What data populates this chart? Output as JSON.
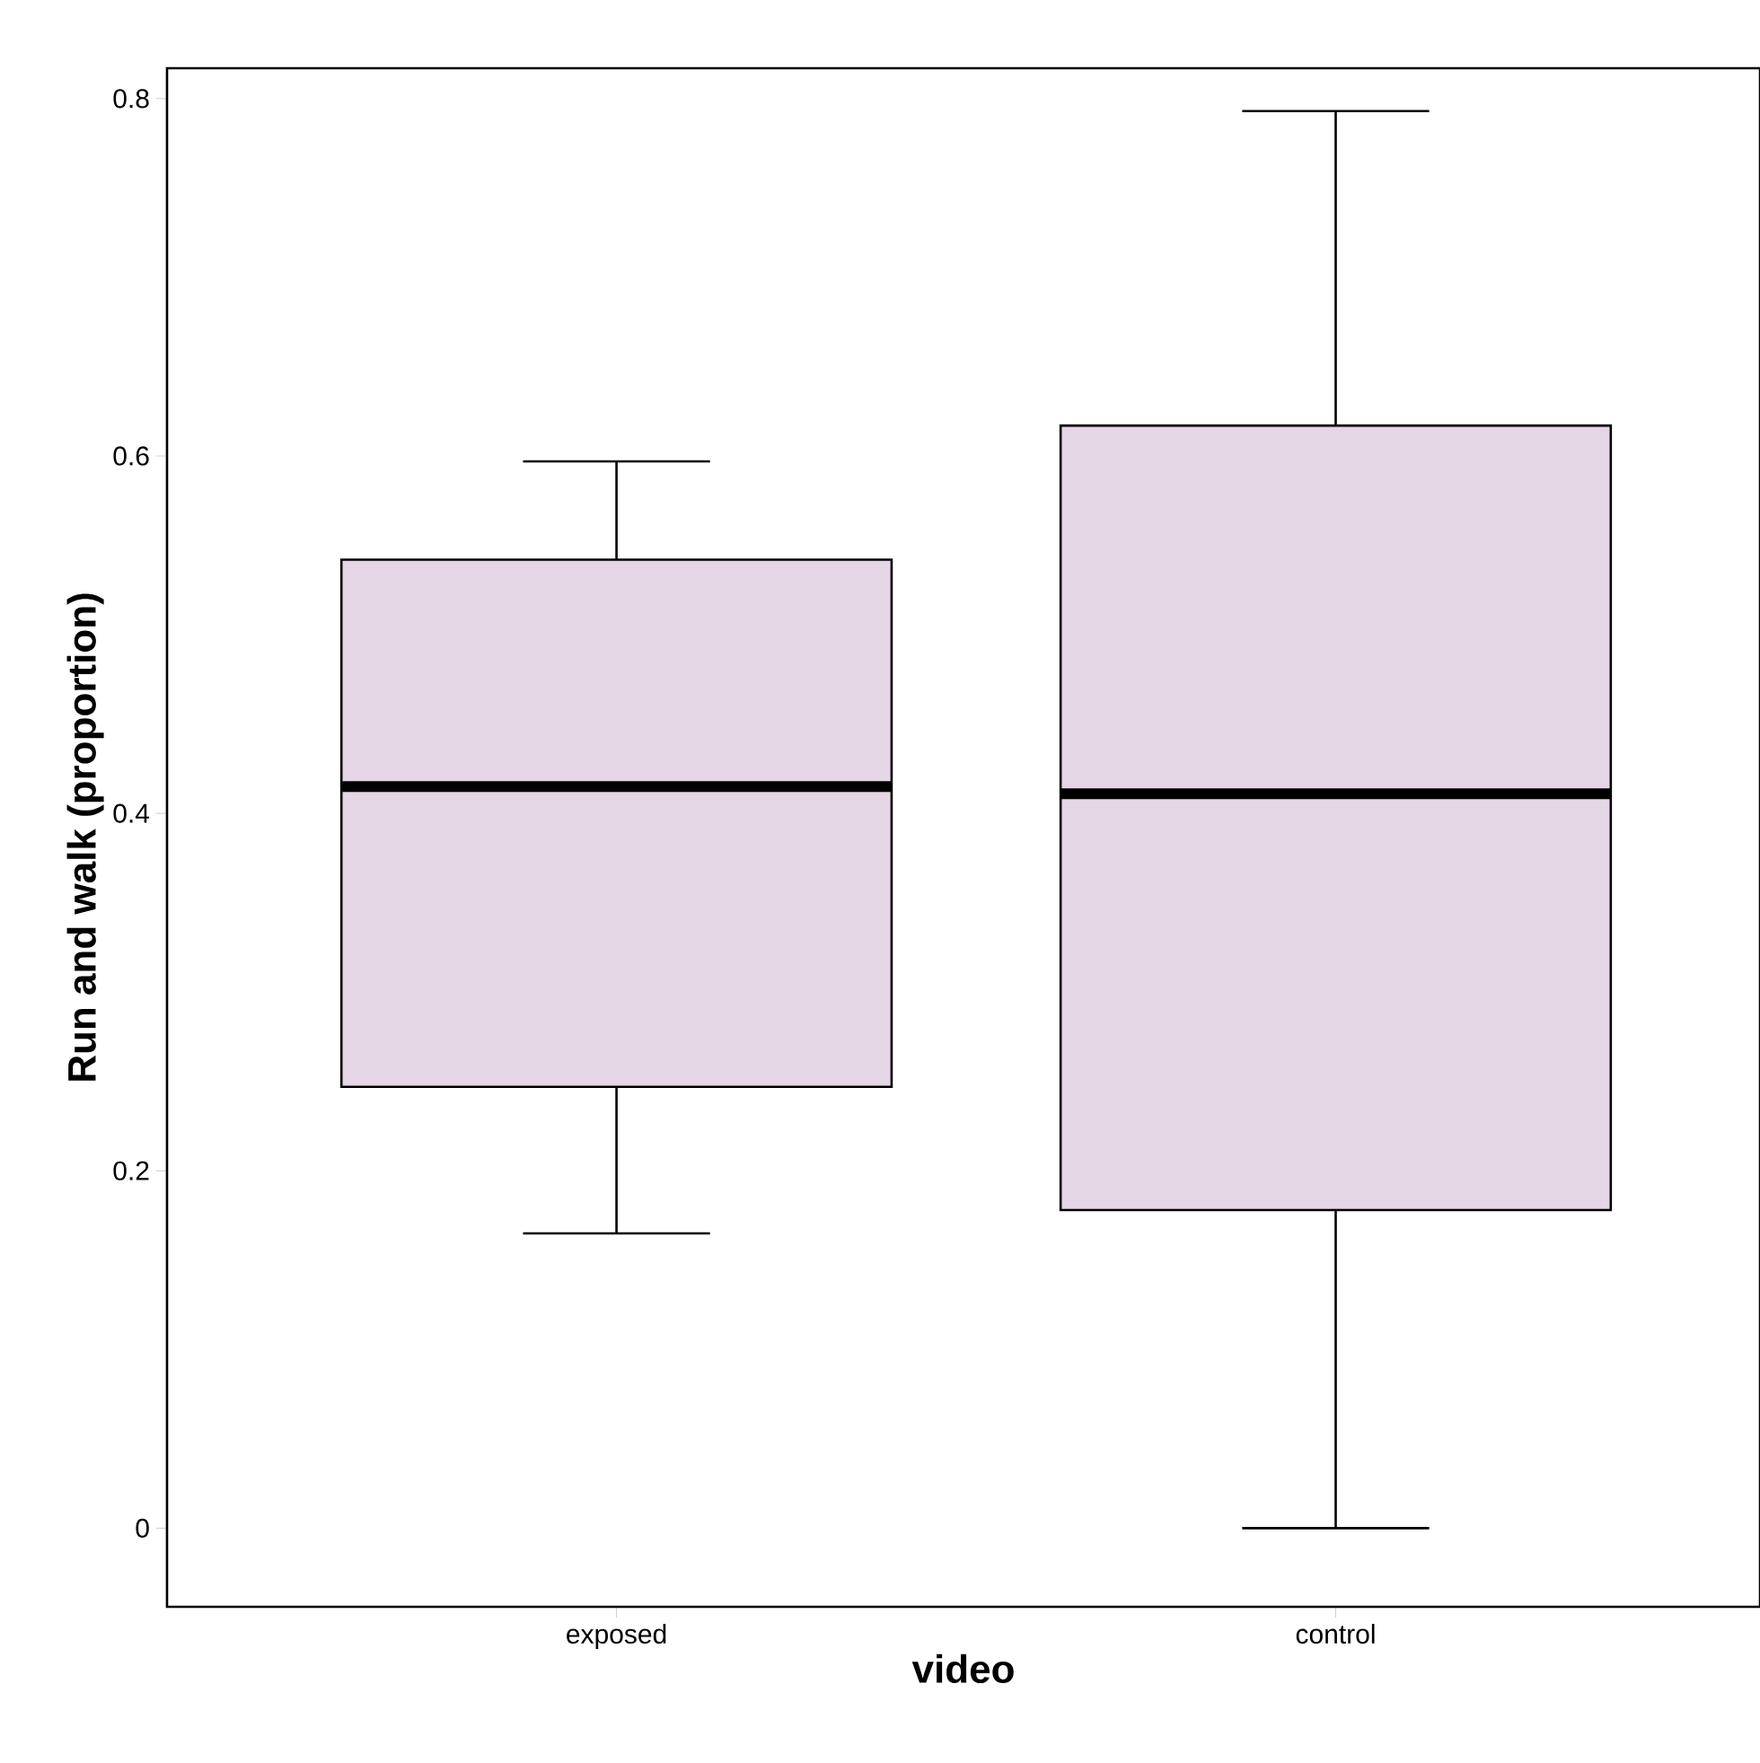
{
  "chart_data": {
    "type": "box",
    "xlabel": "video",
    "ylabel": "Run and walk (proportion)",
    "categories": [
      "exposed",
      "control"
    ],
    "boxes": [
      {
        "low": 0.165,
        "q1": 0.247,
        "median": 0.415,
        "q3": 0.542,
        "high": 0.597
      },
      {
        "low": 0,
        "q1": 0.178,
        "median": 0.411,
        "q3": 0.617,
        "high": 0.793
      }
    ],
    "color": "#e4d6e4",
    "ylim": [
      -0.044,
      0.817
    ],
    "yticks": [
      0,
      0.2,
      0.4,
      0.6,
      0.8
    ]
  }
}
